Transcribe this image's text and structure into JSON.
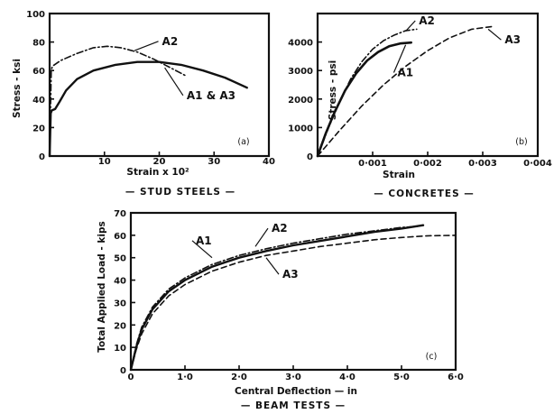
{
  "chart_data": [
    {
      "id": "a",
      "type": "line",
      "panel_label": "(a)",
      "caption": "— STUD STEELS —",
      "xlabel": "Strain x 10²",
      "ylabel": "Stress - ksi",
      "xlim": [
        0,
        40
      ],
      "ylim": [
        0,
        100
      ],
      "xticks": [
        "10",
        "20",
        "30",
        "40"
      ],
      "yticks": [
        "0",
        "20",
        "40",
        "60",
        "80",
        "100"
      ],
      "xtick_values": [
        10,
        20,
        30,
        40
      ],
      "ytick_values": [
        0,
        20,
        40,
        60,
        80,
        100
      ],
      "series": [
        {
          "name": "A2",
          "style": "dashdot",
          "width": 1.6,
          "x": [
            0,
            0.3,
            0.5,
            2,
            5,
            8,
            10.5,
            13,
            16,
            19,
            22,
            25
          ],
          "y": [
            0,
            60,
            63,
            67,
            72,
            76,
            77,
            76,
            73,
            68,
            62,
            56
          ]
        },
        {
          "name": "A1 & A3",
          "style": "solid",
          "width": 2.4,
          "x": [
            0,
            0.2,
            0.4,
            1,
            1.8,
            3,
            5,
            8,
            12,
            16,
            20,
            24,
            28,
            32,
            36
          ],
          "y": [
            0,
            30,
            32,
            33,
            38,
            46,
            54,
            60,
            64,
            66,
            66,
            64,
            60,
            55,
            48
          ]
        }
      ],
      "annotations": [
        {
          "text": "A2",
          "x": 20.5,
          "y": 78,
          "arrow_to": [
            15.5,
            74
          ]
        },
        {
          "text": "A1 & A3",
          "x": 25,
          "y": 40,
          "arrow_to": [
            21,
            62
          ]
        }
      ]
    },
    {
      "id": "b",
      "type": "line",
      "panel_label": "(b)",
      "caption": "— CONCRETES —",
      "xlabel": "Strain",
      "ylabel": "Stress - psi",
      "xlim": [
        0,
        0.004
      ],
      "ylim": [
        0,
        5000
      ],
      "xticks": [
        "0·001",
        "0·002",
        "0·003",
        "0·004"
      ],
      "yticks": [
        "0",
        "1000",
        "2000",
        "3000",
        "4000"
      ],
      "xtick_values": [
        0.001,
        0.002,
        0.003,
        0.004
      ],
      "ytick_values": [
        0,
        1000,
        2000,
        3000,
        4000
      ],
      "series": [
        {
          "name": "A1",
          "style": "solid",
          "width": 2.6,
          "x": [
            0,
            0.00015,
            0.0003,
            0.0005,
            0.0007,
            0.0009,
            0.0011,
            0.0013,
            0.0015,
            0.0017
          ],
          "y": [
            0,
            800,
            1500,
            2300,
            2900,
            3350,
            3650,
            3850,
            3950,
            3980
          ]
        },
        {
          "name": "A2",
          "style": "dashdot",
          "width": 1.6,
          "x": [
            0,
            0.0002,
            0.0004,
            0.0006,
            0.0008,
            0.001,
            0.0012,
            0.0014,
            0.0016,
            0.0018
          ],
          "y": [
            0,
            1000,
            1900,
            2700,
            3300,
            3750,
            4050,
            4250,
            4400,
            4450
          ]
        },
        {
          "name": "A3",
          "style": "dashed",
          "width": 1.6,
          "x": [
            0,
            0.0004,
            0.0008,
            0.0012,
            0.0016,
            0.002,
            0.0024,
            0.0028,
            0.0032
          ],
          "y": [
            0,
            900,
            1750,
            2500,
            3150,
            3700,
            4150,
            4450,
            4550
          ]
        }
      ],
      "annotations": [
        {
          "text": "A2",
          "x": 0.00184,
          "y": 4620,
          "arrow_to": [
            0.0016,
            4380
          ]
        },
        {
          "text": "A1",
          "x": 0.00145,
          "y": 2800,
          "arrow_to": [
            0.0016,
            3900
          ]
        },
        {
          "text": "A3",
          "x": 0.0034,
          "y": 3950,
          "arrow_to": [
            0.0031,
            4450
          ]
        }
      ]
    },
    {
      "id": "c",
      "type": "line",
      "panel_label": "(c)",
      "caption": "— BEAM TESTS —",
      "xlabel": "Central Deflection — in",
      "ylabel": "Total Applied Load - kips",
      "xlim": [
        0,
        6
      ],
      "ylim": [
        0,
        70
      ],
      "xticks": [
        "0",
        "1·0",
        "2·0",
        "3·0",
        "4·0",
        "5·0",
        "6·0"
      ],
      "yticks": [
        "0",
        "10",
        "20",
        "30",
        "40",
        "50",
        "60",
        "70"
      ],
      "xtick_values": [
        0,
        1,
        2,
        3,
        4,
        5,
        6
      ],
      "ytick_values": [
        0,
        10,
        20,
        30,
        40,
        50,
        60,
        70
      ],
      "series": [
        {
          "name": "A1",
          "style": "solid",
          "width": 2.4,
          "x": [
            0,
            0.1,
            0.2,
            0.4,
            0.7,
            1,
            1.5,
            2,
            2.5,
            3,
            3.5,
            4,
            4.5,
            5,
            5.4
          ],
          "y": [
            0,
            10,
            18,
            27,
            35,
            40,
            46,
            50,
            53,
            55.5,
            57.5,
            59.5,
            61.5,
            63,
            64.5
          ]
        },
        {
          "name": "A2",
          "style": "dashdot",
          "width": 1.6,
          "x": [
            0,
            0.1,
            0.2,
            0.4,
            0.7,
            1,
            1.5,
            2,
            2.5,
            3,
            3.5,
            4,
            4.5,
            5,
            5.3
          ],
          "y": [
            0,
            11,
            19,
            28,
            36,
            41,
            47,
            51,
            54,
            56.5,
            58.5,
            60.5,
            62,
            63.5,
            64
          ]
        },
        {
          "name": "A3",
          "style": "dashed",
          "width": 1.6,
          "x": [
            0,
            0.1,
            0.2,
            0.4,
            0.7,
            1,
            1.5,
            2,
            2.5,
            3,
            3.5,
            4,
            4.5,
            5,
            5.5,
            6
          ],
          "y": [
            0,
            9,
            16,
            25,
            33,
            38,
            44,
            48,
            51,
            53,
            55,
            56.5,
            58,
            59,
            59.8,
            60
          ]
        }
      ],
      "annotations": [
        {
          "text": "A2",
          "x": 2.6,
          "y": 61.5,
          "arrow_to": [
            2.3,
            55
          ]
        },
        {
          "text": "A1",
          "x": 1.2,
          "y": 56,
          "arrow_to": [
            1.5,
            50
          ]
        },
        {
          "text": "A3",
          "x": 2.8,
          "y": 41,
          "arrow_to": [
            2.5,
            50
          ]
        }
      ]
    }
  ]
}
